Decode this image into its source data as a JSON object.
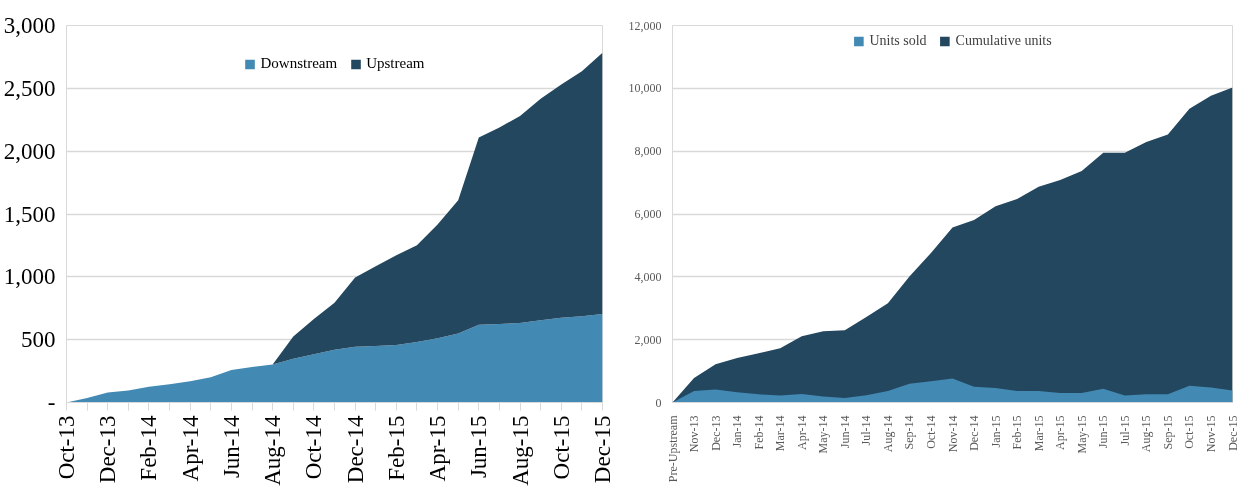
{
  "chart_data": [
    {
      "type": "area",
      "stacked": true,
      "categories": [
        "Oct-13",
        null,
        "Dec-13",
        null,
        "Feb-14",
        null,
        "Apr-14",
        null,
        "Jun-14",
        null,
        "Aug-14",
        null,
        "Oct-14",
        null,
        "Dec-14",
        null,
        "Feb-15",
        null,
        "Apr-15",
        null,
        "Jun-15",
        null,
        "Aug-15",
        null,
        "Oct-15",
        null,
        "Dec-15"
      ],
      "series": [
        {
          "name": "Downstream",
          "color": "#4289b4",
          "values": [
            0,
            36,
            80,
            95,
            125,
            145,
            170,
            200,
            258,
            282,
            303,
            348,
            383,
            419,
            443,
            449,
            458,
            481,
            511,
            550,
            618,
            624,
            633,
            654,
            674,
            686,
            704
          ]
        },
        {
          "name": "Upstream",
          "color": "#23475e",
          "values": [
            0,
            0,
            0,
            0,
            0,
            0,
            0,
            0,
            0,
            0,
            0,
            178,
            282,
            374,
            552,
            635,
            713,
            770,
            906,
            1060,
            1491,
            1565,
            1646,
            1764,
            1857,
            1949,
            2080
          ]
        }
      ],
      "ylim": [
        0,
        3000
      ],
      "yticks": [
        {
          "value": 0,
          "label": "-"
        },
        500,
        {
          "value": 1000,
          "label": "1,000"
        },
        {
          "value": 1500,
          "label": "1,500"
        },
        {
          "value": 2000,
          "label": "2,000"
        },
        {
          "value": 2500,
          "label": "2,500"
        },
        {
          "value": 3000,
          "label": "3,000"
        }
      ],
      "grid": "y",
      "legend": "top"
    },
    {
      "type": "area",
      "categories": [
        "Pre-Upstream",
        "Nov-13",
        "Dec-13",
        "Jan-14",
        "Feb-14",
        "Mar-14",
        "Apr-14",
        "May-14",
        "Jun-14",
        "Jul-14",
        "Aug-14",
        "Sep-14",
        "Oct-14",
        "Nov-14",
        "Dec-14",
        "Jan-15",
        "Feb-15",
        "Mar-15",
        "Apr-15",
        "May-15",
        "Jun-15",
        "Jul-15",
        "Aug-15",
        "Sep-15",
        "Oct-15",
        "Nov-15",
        "Dec-15"
      ],
      "series": [
        {
          "name": "Units sold",
          "color": "#4289b4",
          "values": [
            0,
            370,
            410,
            330,
            260,
            220,
            270,
            190,
            140,
            230,
            370,
            600,
            680,
            760,
            500,
            460,
            370,
            370,
            300,
            300,
            440,
            220,
            260,
            260,
            530,
            480,
            380
          ]
        },
        {
          "name": "Cumulative units",
          "color": "#23475e",
          "values": [
            0,
            780,
            1220,
            1420,
            1570,
            1730,
            2110,
            2270,
            2300,
            2720,
            3160,
            4010,
            4760,
            5570,
            5810,
            6250,
            6480,
            6870,
            7080,
            7370,
            7950,
            7950,
            8290,
            8530,
            9350,
            9760,
            10030
          ]
        }
      ],
      "ylim": [
        0,
        12000
      ],
      "yticks": [
        0,
        {
          "value": 2000,
          "label": "2,000"
        },
        {
          "value": 4000,
          "label": "4,000"
        },
        {
          "value": 6000,
          "label": "6,000"
        },
        {
          "value": 8000,
          "label": "8,000"
        },
        {
          "value": 10000,
          "label": "10,000"
        },
        {
          "value": 12000,
          "label": "12,000"
        }
      ],
      "grid": "y",
      "legend": "top"
    }
  ]
}
